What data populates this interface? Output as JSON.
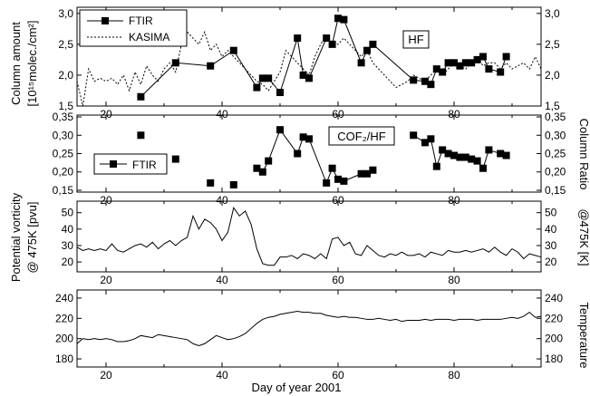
{
  "xlabel": "Day of year 2001",
  "x_ticks": [
    20,
    40,
    60,
    80
  ],
  "xlim": [
    15,
    95
  ],
  "chart_data": [
    {
      "type": "line",
      "id": "hf",
      "title": "HF",
      "ylabel_lines": [
        "Column amount",
        "[10¹⁵molec./cm²]"
      ],
      "ylabel_right": "",
      "ylim": [
        1.5,
        3.1
      ],
      "y_ticks": [
        1.5,
        2.0,
        2.5,
        3.0
      ],
      "y_tick_labels": [
        "1,5",
        "2,0",
        "2,5",
        "3,0"
      ],
      "legend": [
        "FTIR",
        "KASIMA"
      ],
      "legend_position": "top-left",
      "series": [
        {
          "name": "FTIR",
          "style": "solid-square",
          "x": [
            26,
            32,
            38,
            42,
            46,
            47,
            48,
            50,
            53,
            54,
            55,
            58,
            59,
            60,
            61,
            64,
            65,
            66,
            73,
            75,
            76,
            77,
            78,
            79,
            80,
            81,
            82,
            83,
            84,
            85,
            86,
            88,
            89
          ],
          "y": [
            1.65,
            2.2,
            2.15,
            2.4,
            1.8,
            1.95,
            1.95,
            1.72,
            2.6,
            2.0,
            1.95,
            2.6,
            2.5,
            2.92,
            2.9,
            2.2,
            2.4,
            2.5,
            1.92,
            1.9,
            1.85,
            2.1,
            2.05,
            2.2,
            2.2,
            2.15,
            2.2,
            2.2,
            2.25,
            2.3,
            2.1,
            2.05,
            2.3
          ]
        },
        {
          "name": "KASIMA",
          "style": "dashed",
          "x": [
            15,
            16,
            17,
            18,
            19,
            20,
            21,
            22,
            23,
            24,
            25,
            26,
            27,
            28,
            29,
            30,
            31,
            32,
            33,
            34,
            35,
            36,
            37,
            38,
            39,
            40,
            41,
            42,
            43,
            44,
            45,
            46,
            47,
            48,
            49,
            50,
            51,
            52,
            53,
            54,
            55,
            56,
            57,
            58,
            59,
            60,
            61,
            62,
            63,
            64,
            65,
            66,
            67,
            68,
            69,
            70,
            71,
            72,
            73,
            74,
            75,
            76,
            77,
            78,
            79,
            80,
            81,
            82,
            83,
            84,
            85,
            86,
            87,
            88,
            89,
            90,
            91,
            92,
            93,
            94,
            95
          ],
          "y": [
            1.9,
            1.5,
            2.1,
            1.9,
            1.95,
            1.9,
            1.95,
            1.85,
            2.0,
            1.75,
            2.05,
            1.85,
            2.15,
            2.0,
            1.9,
            2.1,
            2.2,
            2.05,
            2.5,
            2.7,
            2.6,
            2.5,
            2.7,
            2.4,
            2.5,
            2.3,
            2.4,
            2.3,
            2.2,
            2.1,
            2.0,
            1.9,
            1.85,
            1.75,
            1.9,
            2.05,
            2.4,
            2.3,
            2.2,
            2.1,
            2.0,
            2.3,
            2.5,
            2.65,
            2.5,
            2.5,
            2.6,
            2.5,
            2.4,
            2.3,
            2.4,
            2.2,
            2.1,
            2.0,
            1.9,
            1.8,
            1.85,
            1.9,
            2.0,
            1.95,
            1.9,
            2.0,
            2.1,
            2.0,
            2.1,
            2.2,
            2.15,
            2.1,
            2.2,
            2.3,
            2.15,
            2.2,
            2.2,
            2.1,
            2.2,
            2.1,
            2.15,
            2.2,
            2.1,
            2.3,
            2.1
          ]
        }
      ]
    },
    {
      "type": "scatter",
      "id": "ratio",
      "title": "COF₂/HF",
      "ylabel_lines": [],
      "ylabel_right": "Column Ratio",
      "ylim": [
        0.145,
        0.355
      ],
      "y_ticks": [
        0.15,
        0.2,
        0.25,
        0.3,
        0.35
      ],
      "y_tick_labels": [
        "0,15",
        "0,20",
        "0,25",
        "0,30",
        "0,35"
      ],
      "legend": [
        "FTIR"
      ],
      "legend_position": "middle-left",
      "series": [
        {
          "name": "FTIR",
          "style": "square-with-segments",
          "x": [
            26,
            32,
            38,
            42,
            46,
            47,
            48,
            50,
            53,
            54,
            55,
            58,
            59,
            60,
            61,
            64,
            65,
            66,
            73,
            75,
            76,
            77,
            78,
            79,
            80,
            81,
            82,
            83,
            84,
            85,
            86,
            88,
            89
          ],
          "y": [
            0.3,
            0.235,
            0.17,
            0.165,
            0.21,
            0.2,
            0.23,
            0.315,
            0.25,
            0.295,
            0.29,
            0.17,
            0.21,
            0.18,
            0.175,
            0.195,
            0.195,
            0.205,
            0.3,
            0.28,
            0.29,
            0.215,
            0.26,
            0.25,
            0.245,
            0.24,
            0.24,
            0.235,
            0.23,
            0.21,
            0.26,
            0.25,
            0.245
          ]
        }
      ]
    },
    {
      "type": "line",
      "id": "pv",
      "title": "",
      "ylabel_lines": [
        "Potential vorticity",
        "@ 475K [pvu]"
      ],
      "ylabel_right": "@475K [K]",
      "ylim": [
        14,
        57
      ],
      "y_ticks": [
        20,
        30,
        40,
        50
      ],
      "y_tick_labels": [
        "20",
        "30",
        "40",
        "50"
      ],
      "series": [
        {
          "name": "",
          "style": "solid",
          "x": [
            15,
            16,
            17,
            18,
            19,
            20,
            21,
            22,
            23,
            24,
            25,
            26,
            27,
            28,
            29,
            30,
            31,
            32,
            33,
            34,
            35,
            36,
            37,
            38,
            39,
            40,
            41,
            42,
            43,
            44,
            45,
            46,
            47,
            48,
            49,
            50,
            51,
            52,
            53,
            54,
            55,
            56,
            57,
            58,
            59,
            60,
            61,
            62,
            63,
            64,
            65,
            66,
            67,
            68,
            69,
            70,
            71,
            72,
            73,
            74,
            75,
            76,
            77,
            78,
            79,
            80,
            81,
            82,
            83,
            84,
            85,
            86,
            87,
            88,
            89,
            90,
            91,
            92,
            93,
            94,
            95
          ],
          "y": [
            29,
            27,
            28,
            27,
            28,
            27,
            31,
            27,
            26,
            28,
            30,
            31,
            29,
            32,
            28,
            31,
            33,
            30,
            33,
            35,
            48,
            40,
            46,
            44,
            40,
            33,
            38,
            53,
            48,
            51,
            43,
            28,
            19,
            18,
            18,
            23,
            23,
            24,
            22,
            25,
            24,
            22,
            25,
            22,
            34,
            35,
            30,
            32,
            25,
            24,
            30,
            27,
            24,
            23,
            25,
            24,
            26,
            24,
            24,
            25,
            23,
            26,
            25,
            24,
            27,
            26,
            26,
            27,
            26,
            27,
            28,
            26,
            29,
            26,
            24,
            28,
            26,
            22,
            25,
            24,
            23
          ]
        }
      ]
    },
    {
      "type": "line",
      "id": "temp",
      "title": "",
      "ylabel_lines": [],
      "ylabel_right": "Temperature",
      "ylim": [
        172,
        248
      ],
      "y_ticks": [
        180,
        200,
        220,
        240
      ],
      "y_tick_labels": [
        "180",
        "200",
        "220",
        "240"
      ],
      "series": [
        {
          "name": "",
          "style": "solid",
          "x": [
            15,
            16,
            17,
            18,
            19,
            20,
            21,
            22,
            23,
            24,
            25,
            26,
            27,
            28,
            29,
            30,
            31,
            32,
            33,
            34,
            35,
            36,
            37,
            38,
            39,
            40,
            41,
            42,
            43,
            44,
            45,
            46,
            47,
            48,
            49,
            50,
            51,
            52,
            53,
            54,
            55,
            56,
            57,
            58,
            59,
            60,
            61,
            62,
            63,
            64,
            65,
            66,
            67,
            68,
            69,
            70,
            71,
            72,
            73,
            74,
            75,
            76,
            77,
            78,
            79,
            80,
            81,
            82,
            83,
            84,
            85,
            86,
            87,
            88,
            89,
            90,
            91,
            92,
            93,
            94,
            95
          ],
          "y": [
            195,
            200,
            199,
            200,
            199,
            200,
            199,
            197,
            197,
            198,
            200,
            203,
            202,
            201,
            204,
            203,
            202,
            201,
            200,
            199,
            195,
            193,
            195,
            199,
            203,
            201,
            199,
            200,
            202,
            205,
            210,
            215,
            219,
            221,
            222,
            224,
            225,
            226,
            227,
            226,
            226,
            225,
            225,
            223,
            222,
            221,
            222,
            221,
            221,
            220,
            219,
            219,
            220,
            219,
            218,
            219,
            217,
            218,
            218,
            218,
            219,
            218,
            219,
            219,
            219,
            218,
            219,
            219,
            219,
            218,
            219,
            219,
            219,
            219,
            220,
            221,
            220,
            222,
            226,
            221,
            222
          ]
        }
      ]
    }
  ]
}
